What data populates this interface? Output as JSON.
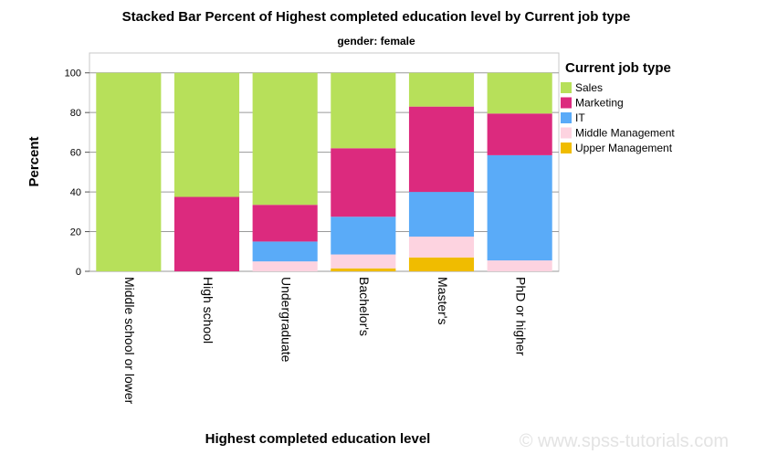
{
  "chart_data": {
    "type": "bar",
    "stacked": true,
    "title": "Stacked Bar Percent of Highest completed education level by Current job type",
    "subtitle": "gender: female",
    "xlabel": "Highest completed education level",
    "ylabel": "Percent",
    "ylim": [
      0,
      110
    ],
    "yticks": [
      0,
      20,
      40,
      60,
      80,
      100
    ],
    "grid": true,
    "legend_title": "Current job type",
    "legend_position": "right",
    "categories": [
      "Middle school or lower",
      "High school",
      "Undergraduate",
      "Bachelor's",
      "Master's",
      "PhD or higher"
    ],
    "series": [
      {
        "name": "Upper Management",
        "color": "#f0bc00",
        "values": [
          0,
          0,
          0,
          1.5,
          7,
          0
        ]
      },
      {
        "name": "Middle Management",
        "color": "#fdd3e0",
        "values": [
          0,
          0,
          5,
          7,
          10.5,
          5.5
        ]
      },
      {
        "name": "IT",
        "color": "#5aabf8",
        "values": [
          0,
          0,
          10,
          19,
          22.5,
          53
        ]
      },
      {
        "name": "Marketing",
        "color": "#dc2a7e",
        "values": [
          0,
          37.5,
          18.5,
          34.5,
          43,
          21
        ]
      },
      {
        "name": "Sales",
        "color": "#b7e05a",
        "values": [
          100,
          62.5,
          66.5,
          38,
          17,
          20.5
        ]
      }
    ],
    "legend_order": [
      "Sales",
      "Marketing",
      "IT",
      "Middle Management",
      "Upper Management"
    ]
  },
  "watermark": "© www.spss-tutorials.com"
}
